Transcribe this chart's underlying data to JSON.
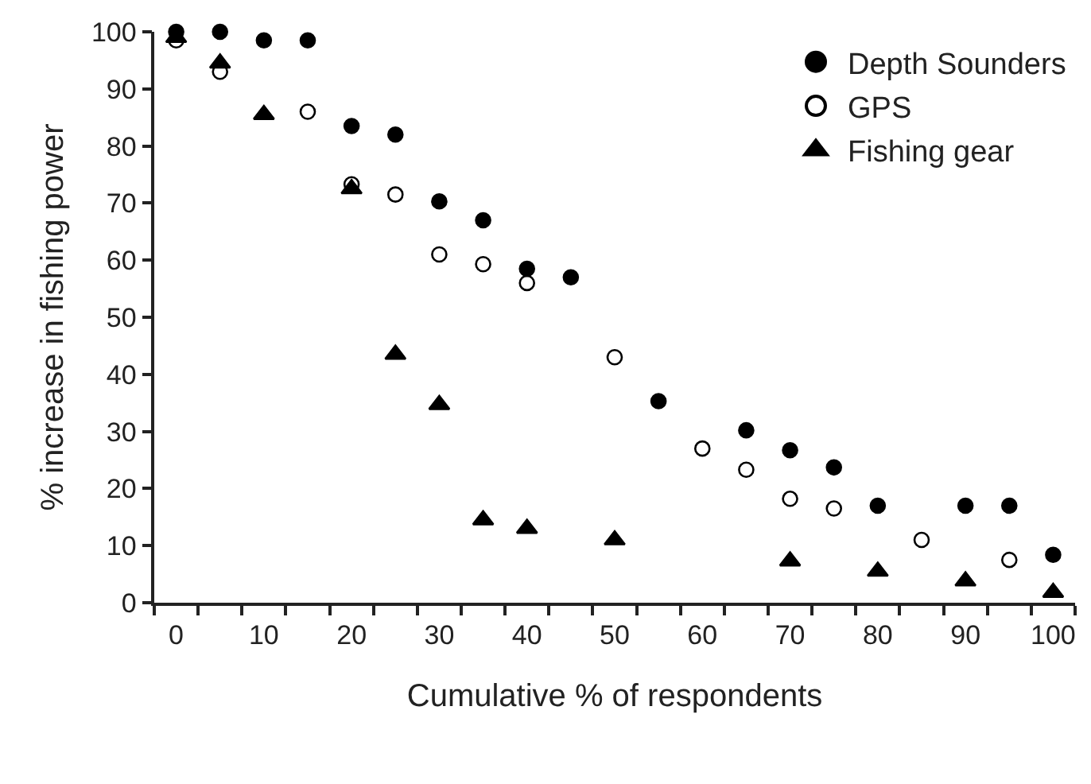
{
  "chart_data": {
    "type": "scatter",
    "xlabel": "Cumulative % of respondents",
    "ylabel": "% increase in fishing power",
    "xlim": [
      -2.5,
      102.5
    ],
    "xticks": [
      0,
      10,
      20,
      30,
      40,
      50,
      60,
      70,
      80,
      90,
      100
    ],
    "ylim": [
      0,
      100
    ],
    "yticks": [
      0,
      10,
      20,
      30,
      40,
      50,
      60,
      70,
      80,
      90,
      100
    ],
    "grid": false,
    "legend": "top right",
    "series": [
      {
        "name": "Depth Sounders",
        "color": "#000000",
        "marker": "circle",
        "x": [
          0,
          5,
          10,
          15,
          20,
          25,
          30,
          35,
          40,
          45,
          55,
          65,
          70,
          75,
          80,
          90,
          95,
          100
        ],
        "values": [
          100,
          100,
          98.5,
          98.5,
          83.5,
          82,
          70.3,
          67,
          58.5,
          57,
          35.3,
          30.2,
          26.7,
          23.7,
          17,
          17,
          17,
          8.4
        ]
      },
      {
        "name": "GPS",
        "color": "#000000",
        "marker": "circle-open",
        "x": [
          0,
          5,
          15,
          20,
          25,
          30,
          35,
          40,
          50,
          60,
          65,
          70,
          75,
          85,
          95
        ],
        "values": [
          98.5,
          93,
          86,
          73.3,
          71.5,
          61,
          59.3,
          56,
          43,
          27,
          23.3,
          18.2,
          16.5,
          11,
          7.5
        ]
      },
      {
        "name": "Fishing gear",
        "color": "#000000",
        "marker": "triangle",
        "x": [
          0,
          5,
          10,
          20,
          25,
          30,
          35,
          40,
          50,
          70,
          80,
          90,
          100
        ],
        "values": [
          99,
          94.5,
          85.5,
          72.5,
          43.5,
          34.7,
          14.5,
          13,
          11,
          7.3,
          5.5,
          3.8,
          1.8
        ]
      }
    ]
  }
}
